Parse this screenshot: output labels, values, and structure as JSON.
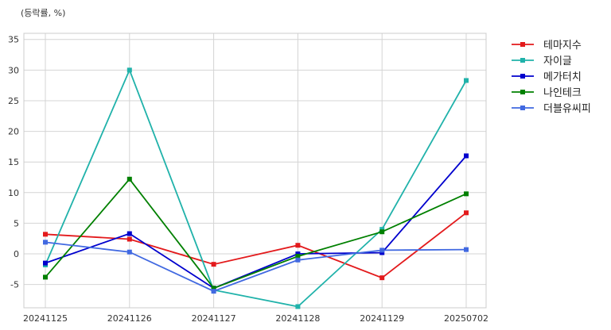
{
  "chart_data": {
    "type": "line",
    "title": "",
    "unit_label": "(등락률, %)",
    "xlabel": "",
    "ylabel": "",
    "categories": [
      "20241125",
      "20241126",
      "20241127",
      "20241128",
      "20241129",
      "20250702"
    ],
    "ylim": [
      -8.8,
      36
    ],
    "yticks": [
      -5,
      0,
      5,
      10,
      15,
      20,
      25,
      30,
      35
    ],
    "grid": true,
    "legend_position": "right",
    "series": [
      {
        "name": "테마지수",
        "color": "#e31a1c",
        "values": [
          3.2,
          2.4,
          -1.7,
          1.4,
          -3.9,
          6.7
        ]
      },
      {
        "name": "자이글",
        "color": "#20b2aa",
        "values": [
          -1.8,
          30.0,
          -5.9,
          -8.6,
          4.0,
          28.3
        ]
      },
      {
        "name": "메가터치",
        "color": "#0000cd",
        "values": [
          -1.5,
          3.3,
          -5.6,
          0.0,
          0.2,
          16.0
        ]
      },
      {
        "name": "나인테크",
        "color": "#008000",
        "values": [
          -3.8,
          12.2,
          -5.6,
          -0.4,
          3.6,
          9.8
        ]
      },
      {
        "name": "더블유씨피",
        "color": "#4169e1",
        "values": [
          1.9,
          0.3,
          -6.1,
          -1.0,
          0.6,
          0.7
        ]
      }
    ]
  }
}
